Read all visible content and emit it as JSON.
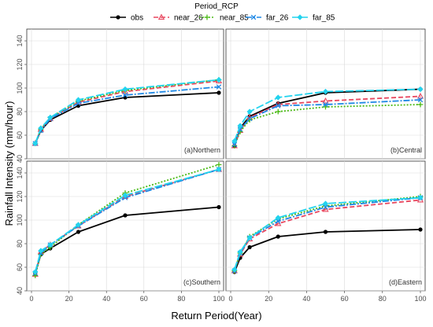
{
  "chart_data": {
    "type": "line",
    "xlabel": "Return Period(Year)",
    "ylabel": "Rainfall Intensity (mm/hour)",
    "legend_title": "Period_RCP",
    "legend_position": "top",
    "grid": true,
    "x": [
      2,
      5,
      10,
      25,
      50,
      100
    ],
    "xlim": [
      0,
      100
    ],
    "x_ticks": [
      0,
      20,
      40,
      60,
      80,
      100
    ],
    "series_styles": [
      {
        "name": "obs",
        "color": "#000000",
        "dash": "",
        "marker": "circle"
      },
      {
        "name": "near_26",
        "color": "#e8475f",
        "dash": "6,3",
        "marker": "triangle"
      },
      {
        "name": "near_85",
        "color": "#4cbb17",
        "dash": "2,2",
        "marker": "plus"
      },
      {
        "name": "far_26",
        "color": "#1e88e5",
        "dash": "8,2,2,2",
        "marker": "x"
      },
      {
        "name": "far_85",
        "color": "#22d3ee",
        "dash": "10,3",
        "marker": "diamond"
      }
    ],
    "panels": [
      {
        "label": "(a)Northern",
        "ylim": [
          40,
          150
        ],
        "y_ticks": [
          40,
          60,
          80,
          100,
          120,
          140
        ],
        "series": [
          {
            "name": "obs",
            "values": [
              53,
              64,
              73,
              85,
              92,
              96
            ]
          },
          {
            "name": "near_26",
            "values": [
              53,
              65,
              74,
              88,
              97,
              106
            ]
          },
          {
            "name": "near_85",
            "values": [
              53,
              65,
              75,
              89,
              98,
              107
            ]
          },
          {
            "name": "far_26",
            "values": [
              53,
              64,
              74,
              87,
              94,
              101
            ]
          },
          {
            "name": "far_85",
            "values": [
              53,
              66,
              75,
              90,
              99,
              107
            ]
          }
        ]
      },
      {
        "label": "(b)Central",
        "ylim": [
          40,
          150
        ],
        "y_ticks": [
          40,
          60,
          80,
          100,
          120,
          140
        ],
        "series": [
          {
            "name": "obs",
            "values": [
              51,
              66,
              76,
              87,
              96,
              99
            ]
          },
          {
            "name": "near_26",
            "values": [
              51,
              64,
              75,
              86,
              89,
              93
            ]
          },
          {
            "name": "near_85",
            "values": [
              51,
              63,
              73,
              80,
              84,
              86
            ]
          },
          {
            "name": "far_26",
            "values": [
              52,
              65,
              74,
              85,
              86,
              90
            ]
          },
          {
            "name": "far_85",
            "values": [
              55,
              68,
              80,
              92,
              97,
              99
            ]
          }
        ]
      },
      {
        "label": "(c)Southern",
        "ylim": [
          40,
          150
        ],
        "y_ticks": [
          40,
          60,
          80,
          100,
          120,
          140
        ],
        "series": [
          {
            "name": "obs",
            "values": [
              55,
              71,
              76,
              90,
              104,
              111
            ]
          },
          {
            "name": "near_26",
            "values": [
              54,
              73,
              79,
              95,
              120,
              143
            ]
          },
          {
            "name": "near_85",
            "values": [
              53,
              71,
              77,
              96,
              123,
              147
            ]
          },
          {
            "name": "far_26",
            "values": [
              55,
              72,
              79,
              95,
              119,
              143
            ]
          },
          {
            "name": "far_85",
            "values": [
              56,
              74,
              79,
              96,
              121,
              143
            ]
          }
        ]
      },
      {
        "label": "(d)Eastern",
        "ylim": [
          40,
          150
        ],
        "y_ticks": [
          40,
          60,
          80,
          100,
          120,
          140
        ],
        "series": [
          {
            "name": "obs",
            "values": [
              56,
              68,
              77,
              86,
              90,
              92
            ]
          },
          {
            "name": "near_26",
            "values": [
              57,
              71,
              84,
              97,
              109,
              117
            ]
          },
          {
            "name": "near_85",
            "values": [
              57,
              72,
              86,
              101,
              112,
              120
            ]
          },
          {
            "name": "far_26",
            "values": [
              57,
              72,
              85,
              99,
              111,
              119
            ]
          },
          {
            "name": "far_85",
            "values": [
              58,
              73,
              85,
              102,
              114,
              119
            ]
          }
        ]
      }
    ]
  }
}
